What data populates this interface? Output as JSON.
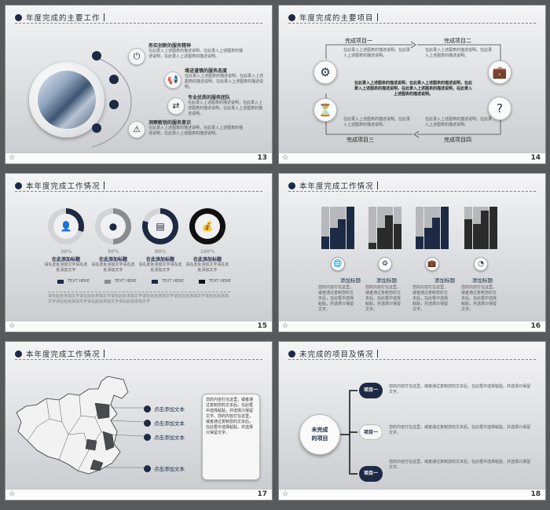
{
  "slides": [
    {
      "number": "13",
      "title": "年度完成的主要工作",
      "items": [
        {
          "heading": "务实创新的服务精神",
          "icon": "power-icon",
          "text": "在此录入上述图表的描述说明，在此录入上述图表的描述说明，在此录入上述图表的描述说明。"
        },
        {
          "heading": "增进谨慎的服务态度",
          "icon": "megaphone-icon",
          "text": "在此录入上述图表的描述说明，在此录入上述图表的描述说明，在此录入上述图表的描述说明。"
        },
        {
          "heading": "专业优质的服务团队",
          "icon": "signpost-icon",
          "text": "在此录入上述图表的描述说明，在此录入上述图表的描述说明，在此录入上述图表的描述说明。"
        },
        {
          "heading": "洞察敏锐的服务意识",
          "icon": "warning-icon",
          "text": "在此录入上述图表的描述说明，在此录入上述图表的描述说明，在此录入上述图表的描述说明。"
        }
      ]
    },
    {
      "number": "14",
      "title": "年度完成的主要项目",
      "projects": [
        "完成项目一",
        "完成项目二",
        "完成项目三",
        "完成项目四"
      ],
      "project_text": "在此录入上述图表的描述说明。在此录入上述图表的描述说明。",
      "center_text": "在此录入上述图表的描述说明，在此录入上述图表的描述说明，在此录入上述图表的描述说明，在此录入上述图表的描述说明，在此录入上述图表的描述说明。"
    },
    {
      "number": "15",
      "title": "本年度完成工作情况",
      "donuts": [
        {
          "pct": "30%",
          "value": 30,
          "caption": "在此添加标题",
          "desc": "请在此处添加文字请在此处添加文字",
          "color": "#1c2a44"
        },
        {
          "pct": "50%",
          "value": 50,
          "caption": "在此添加标题",
          "desc": "请在此处添加文字请在此处添加文字",
          "color": "#8a8b8e"
        },
        {
          "pct": "80%",
          "value": 80,
          "caption": "在此添加标题",
          "desc": "请在此处添加文字请在此处添加文字",
          "color": "#1c2a44"
        },
        {
          "pct": "100%",
          "value": 100,
          "caption": "在此添加标题",
          "desc": "请在此处添加文字请在此处添加文字",
          "color": "#111111"
        }
      ],
      "legend": [
        "TEXT HERE",
        "TEXT HERE",
        "TEXT HERE",
        "TEXT HERE"
      ],
      "footer_text": "请在此处添加文字请在此处添加文字请在此处添加文字请在此处添加文字请在此处添加文字请在此处添加文字请在此处添加文字请在此处添加文字请在此处添加文字"
    },
    {
      "number": "16",
      "title": "本年度完成工作情况",
      "groups": [
        {
          "label": "添加标题",
          "icon": "globe-icon",
          "bars": [
            0.3,
            0.5,
            0.7,
            1.0
          ],
          "color": "#1c2a44",
          "text": "您的内容打在这里，或者通过复制您的文本后，在此框中选择粘贴，并选择只保留文字。"
        },
        {
          "label": "添加标题",
          "icon": "gears-icon",
          "bars": [
            0.15,
            0.5,
            0.8,
            0.6
          ],
          "color": "#2b2b2b",
          "text": "您的内容打在这里，或者通过复制您的文本后，在此框中选择粘贴，并选择只保留文字。"
        },
        {
          "label": "添加标题",
          "icon": "briefcase-icon",
          "bars": [
            0.3,
            0.5,
            0.75,
            1.0
          ],
          "color": "#1c2a44",
          "text": "您的内容打在这里，或者通过复制您的文本后，在此框中选择粘贴，并选择只保留文字。"
        },
        {
          "label": "添加标题",
          "icon": "chart-icon",
          "bars": [
            0.7,
            0.6,
            0.9,
            1.0
          ],
          "color": "#2b2b2b",
          "text": "您的内容打在这里，或者通过复制您的文本后，在此框中选择粘贴，并选择只保留文字。"
        }
      ]
    },
    {
      "number": "17",
      "title": "本年度完成工作情况",
      "labels": [
        "点击添加文本",
        "点击添加文本",
        "点击添加文本",
        "点击添加文本"
      ],
      "card_text": "您的内容打在这里，或者通过复制您的文本后，在此框中选择粘贴，并选择只保留文字。您的内容打在这里，或者通过复制您的文本后，在此框中选择粘贴，并选择只保留文字。"
    },
    {
      "number": "18",
      "title": "未完成的项目及情况",
      "center": [
        "未完成",
        "的项目"
      ],
      "nodes": [
        {
          "label": "项目一",
          "text": "您的内容打在这里，或者通过复制您的文本后，在此框中选择粘贴，并选择只保留文字。"
        },
        {
          "label": "项目一",
          "text": "您的内容打在这里，或者通过复制您的文本后，在此框中选择粘贴，并选择只保留文字。"
        },
        {
          "label": "项目一",
          "text": "您的内容打在这里，或者通过复制您的文本后，在此框中选择粘贴，并选择只保留文字。"
        }
      ]
    }
  ],
  "colors": {
    "navy": "#1c2a44",
    "grey": "#8a8b8e",
    "background": "#58595b"
  }
}
